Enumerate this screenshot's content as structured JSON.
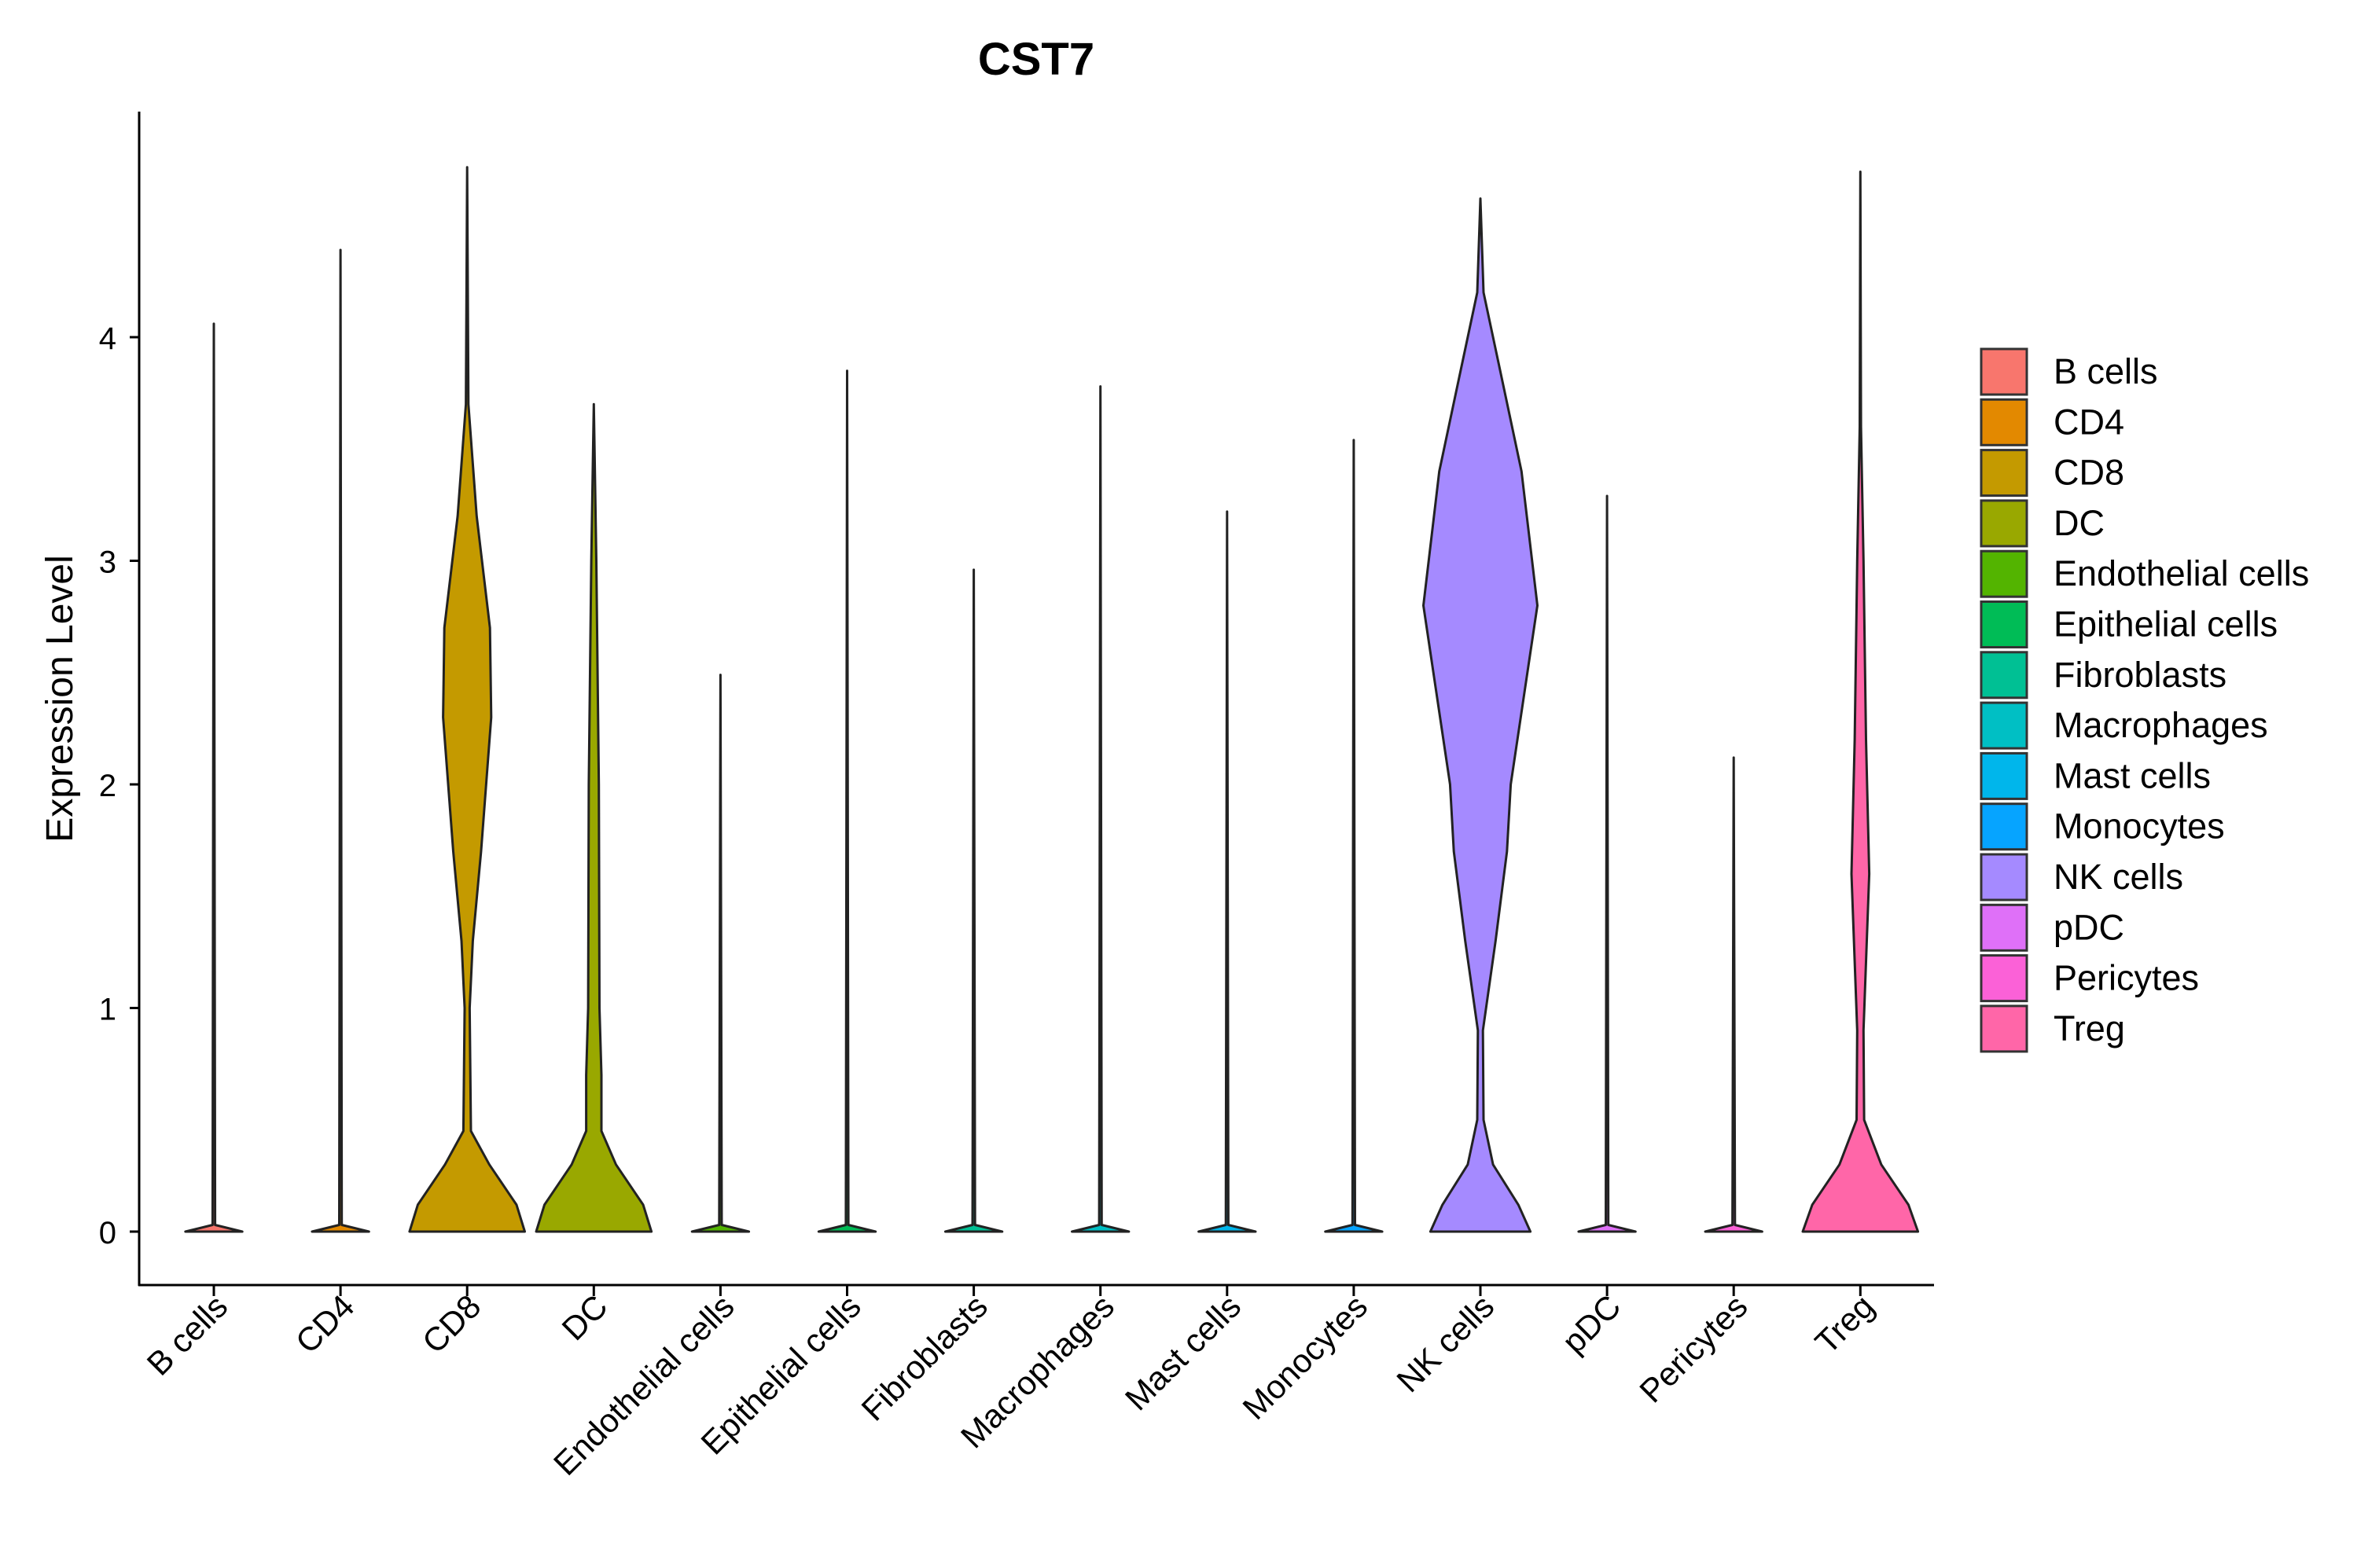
{
  "chart_data": {
    "type": "violin",
    "title": "CST7",
    "xlabel": "",
    "ylabel": "Expression Level",
    "ylim": [
      -0.23,
      5.0
    ],
    "yticks": [
      0,
      1,
      2,
      3,
      4
    ],
    "grid": false,
    "legend_position": "right",
    "categories": [
      "B cells",
      "CD4",
      "CD8",
      "DC",
      "Endothelial cells",
      "Epithelial cells",
      "Fibroblasts",
      "Macrophages",
      "Mast cells",
      "Monocytes",
      "NK cells",
      "pDC",
      "Pericytes",
      "Treg"
    ],
    "colors": [
      "#F8766D",
      "#E38900",
      "#C49A00",
      "#99A800",
      "#53B400",
      "#00BC56",
      "#00C094",
      "#00BFC4",
      "#00B6EB",
      "#06A4FF",
      "#A58AFF",
      "#DF70F8",
      "#FB61D7",
      "#FF66A8"
    ],
    "max_values": [
      4.06,
      4.39,
      4.76,
      3.7,
      2.49,
      3.85,
      2.96,
      3.78,
      3.22,
      3.54,
      4.62,
      3.29,
      2.12,
      4.74
    ],
    "density_profiles": [
      [
        [
          0,
          0.45
        ],
        [
          0.03,
          0.02
        ],
        [
          4.06,
          0.0
        ]
      ],
      [
        [
          0,
          0.45
        ],
        [
          0.03,
          0.02
        ],
        [
          4.39,
          0.0
        ]
      ],
      [
        [
          0,
          0.91
        ],
        [
          0.12,
          0.78
        ],
        [
          0.3,
          0.35
        ],
        [
          0.45,
          0.06
        ],
        [
          1.0,
          0.04
        ],
        [
          1.3,
          0.09
        ],
        [
          1.7,
          0.22
        ],
        [
          2.3,
          0.38
        ],
        [
          2.7,
          0.36
        ],
        [
          3.2,
          0.15
        ],
        [
          3.7,
          0.02
        ],
        [
          4.76,
          0.0
        ]
      ],
      [
        [
          0,
          0.91
        ],
        [
          0.12,
          0.78
        ],
        [
          0.3,
          0.35
        ],
        [
          0.45,
          0.12
        ],
        [
          0.7,
          0.12
        ],
        [
          1.0,
          0.09
        ],
        [
          2.0,
          0.08
        ],
        [
          3.0,
          0.04
        ],
        [
          3.7,
          0.0
        ]
      ],
      [
        [
          0,
          0.45
        ],
        [
          0.03,
          0.02
        ],
        [
          2.49,
          0.0
        ]
      ],
      [
        [
          0,
          0.45
        ],
        [
          0.03,
          0.02
        ],
        [
          3.85,
          0.0
        ]
      ],
      [
        [
          0,
          0.45
        ],
        [
          0.03,
          0.02
        ],
        [
          2.96,
          0.0
        ]
      ],
      [
        [
          0,
          0.45
        ],
        [
          0.03,
          0.02
        ],
        [
          3.78,
          0.0
        ]
      ],
      [
        [
          0,
          0.45
        ],
        [
          0.03,
          0.02
        ],
        [
          3.22,
          0.0
        ]
      ],
      [
        [
          0,
          0.45
        ],
        [
          0.03,
          0.02
        ],
        [
          3.54,
          0.0
        ]
      ],
      [
        [
          0,
          0.79
        ],
        [
          0.12,
          0.6
        ],
        [
          0.3,
          0.2
        ],
        [
          0.5,
          0.05
        ],
        [
          0.9,
          0.04
        ],
        [
          1.3,
          0.24
        ],
        [
          1.7,
          0.42
        ],
        [
          2.0,
          0.48
        ],
        [
          2.8,
          0.9
        ],
        [
          3.4,
          0.65
        ],
        [
          3.8,
          0.35
        ],
        [
          4.2,
          0.05
        ],
        [
          4.62,
          0.0
        ]
      ],
      [
        [
          0,
          0.45
        ],
        [
          0.03,
          0.02
        ],
        [
          3.29,
          0.0
        ]
      ],
      [
        [
          0,
          0.45
        ],
        [
          0.03,
          0.02
        ],
        [
          2.12,
          0.0
        ]
      ],
      [
        [
          0,
          0.91
        ],
        [
          0.12,
          0.76
        ],
        [
          0.3,
          0.33
        ],
        [
          0.5,
          0.06
        ],
        [
          0.9,
          0.05
        ],
        [
          1.6,
          0.14
        ],
        [
          2.2,
          0.09
        ],
        [
          3.0,
          0.05
        ],
        [
          3.6,
          0.01
        ],
        [
          4.74,
          0.0
        ]
      ]
    ]
  }
}
